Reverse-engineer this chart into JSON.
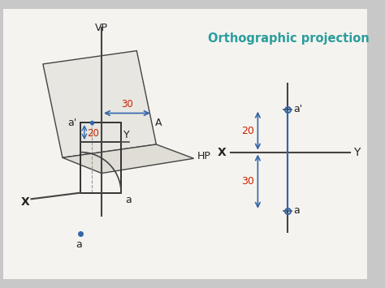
{
  "bg_color": "#c8c8c8",
  "inner_bg_color": "#f5f3ef",
  "title": "Orthographic projection",
  "title_color": "#2a9d9d",
  "title_fontsize": 10.5,
  "dim_color": "#cc2200",
  "point_color": "#3366aa",
  "arrow_color": "#3366aa",
  "line_color": "#444444",
  "vp_label": "VP",
  "hp_label": "HP",
  "x_label_3d": "X",
  "y_label_3d": "Y",
  "x_label_2d": "X",
  "y_label_2d": "Y",
  "a_label": "a",
  "aprime_label": "a'",
  "A_label": "A",
  "dim_30": "30",
  "dim_20": "20"
}
